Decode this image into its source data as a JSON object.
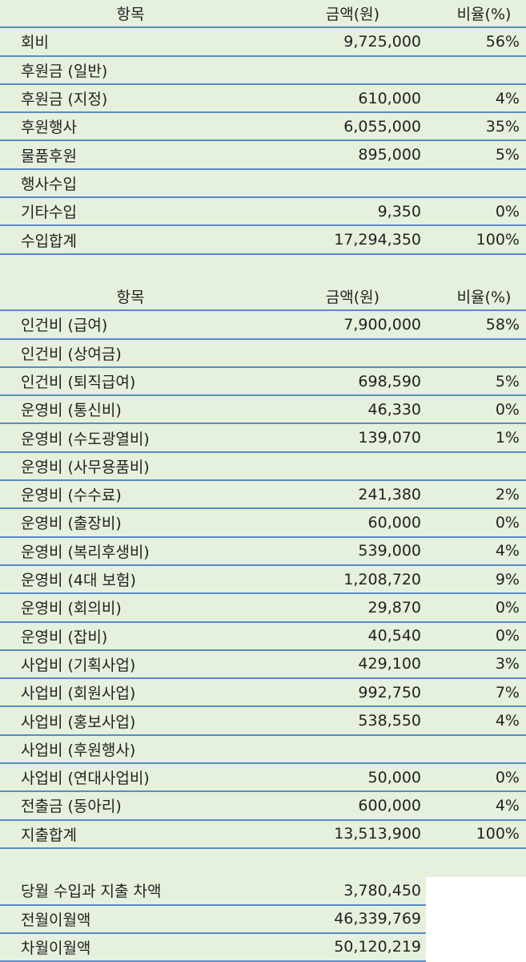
{
  "income": {
    "header": [
      "항목",
      "금액(원)",
      "비율(%)"
    ],
    "rows": [
      [
        "회비",
        "9,725,000",
        "56%"
      ],
      [
        "후원금 (일반)",
        null,
        null
      ],
      [
        "후원금 (지정)",
        "610,000",
        "4%"
      ],
      [
        "후원행사",
        "6,055,000",
        "35%"
      ],
      [
        "물품후원",
        "895,000",
        "5%"
      ],
      [
        "행사수입",
        null,
        null
      ],
      [
        "기타수입",
        "9,350",
        "0%"
      ],
      [
        "수입합계",
        "17,294,350",
        "100%"
      ]
    ]
  },
  "expense": {
    "header": [
      "항목",
      "금액(원)",
      "비율(%)"
    ],
    "rows": [
      [
        "인건비 (급여)",
        "7,900,000",
        "58%"
      ],
      [
        "인건비 (상여금)",
        null,
        null
      ],
      [
        "인건비 (퇴직급여)",
        "698,590",
        "5%"
      ],
      [
        "운영비 (통신비)",
        "46,330",
        "0%"
      ],
      [
        "운영비 (수도광열비)",
        "139,070",
        "1%"
      ],
      [
        "운영비 (사무용품비)",
        null,
        null
      ],
      [
        "운영비 (수수료)",
        "241,380",
        "2%"
      ],
      [
        "운영비 (출장비)",
        "60,000",
        "0%"
      ],
      [
        "운영비 (복리후생비)",
        "539,000",
        "4%"
      ],
      [
        "운영비 (4대 보험)",
        "1,208,720",
        "9%"
      ],
      [
        "운영비 (회의비)",
        "29,870",
        "0%"
      ],
      [
        "운영비 (잡비)",
        "40,540",
        "0%"
      ],
      [
        "사업비 (기획사업)",
        "429,100",
        "3%"
      ],
      [
        "사업비 (회원사업)",
        "992,750",
        "7%"
      ],
      [
        "사업비 (홍보사업)",
        "538,550",
        "4%"
      ],
      [
        "사업비 (후원행사)",
        null,
        null
      ],
      [
        "사업비 (연대사업비)",
        "50,000",
        "0%"
      ],
      [
        "전출금 (동아리)",
        "600,000",
        "4%"
      ],
      [
        "지출합계",
        "13,513,900",
        "100%"
      ]
    ]
  },
  "summary": {
    "rows": [
      [
        "당월 수입과 지출 차액",
        "3,780,450"
      ],
      [
        "전월이월액",
        "46,339,769"
      ],
      [
        "차월이월액",
        "50,120,219"
      ]
    ]
  }
}
